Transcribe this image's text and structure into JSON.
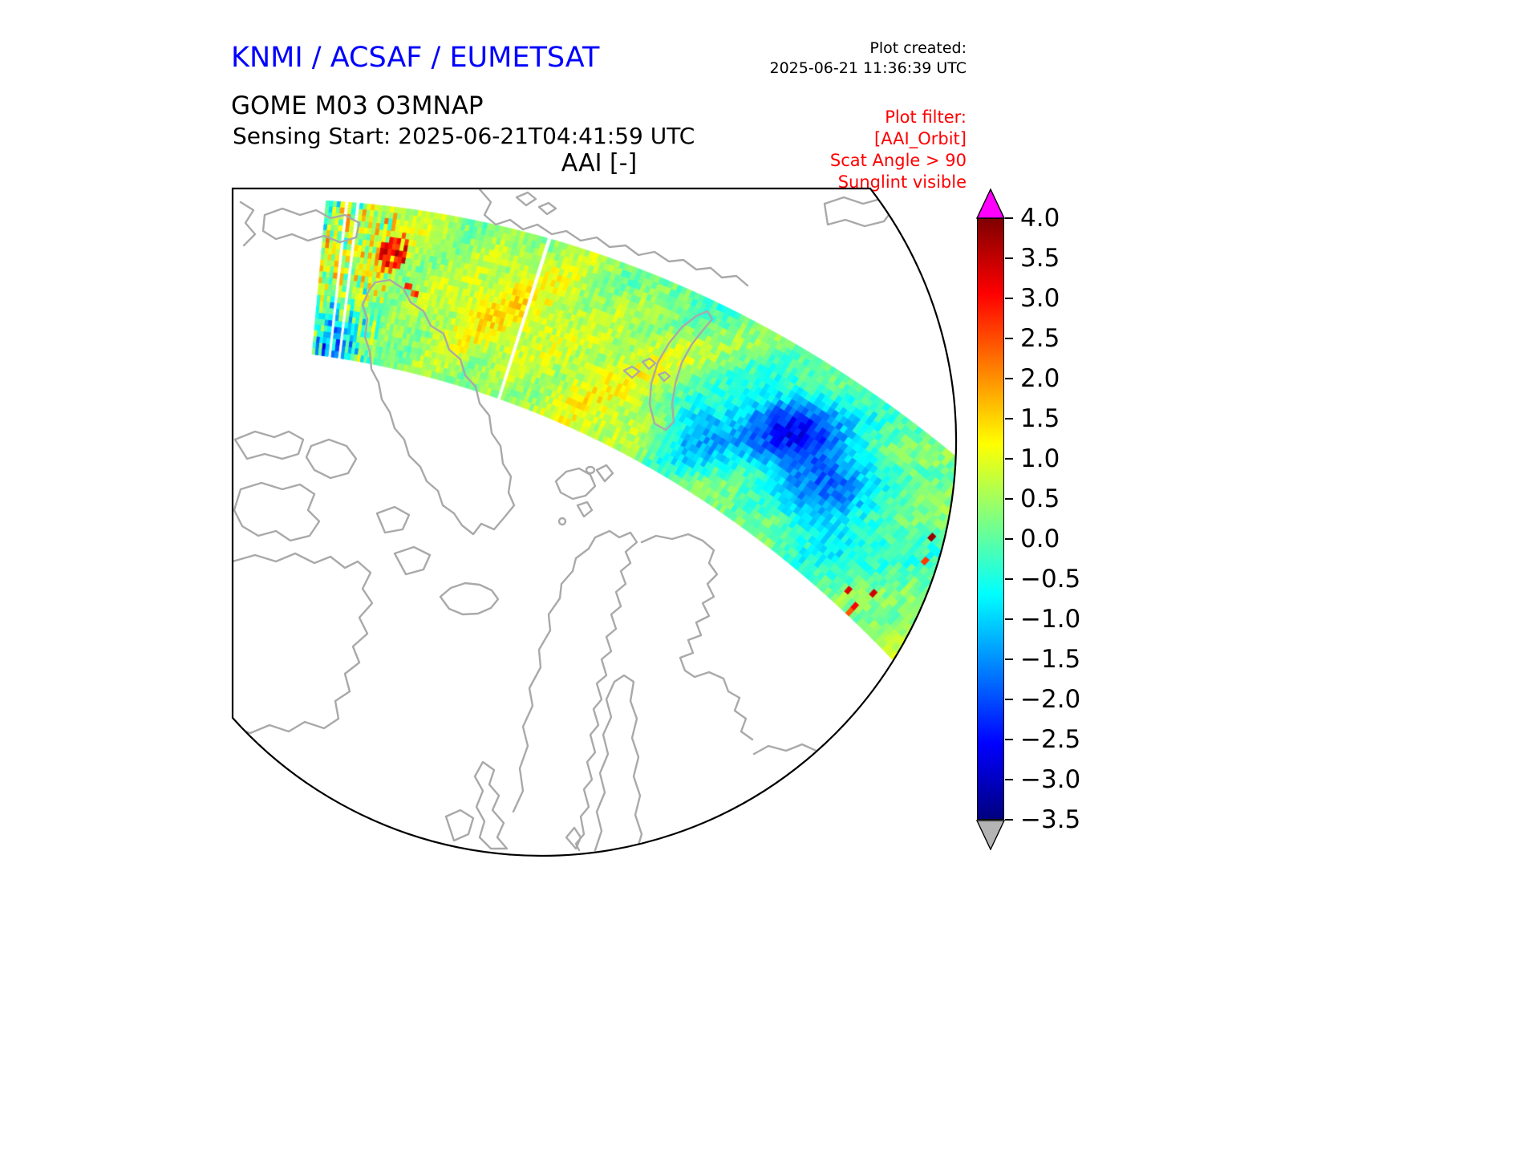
{
  "header": {
    "agency_title": "KNMI / ACSAF / EUMETSAT",
    "plot_created_label": "Plot created:",
    "plot_created_time": "2025-06-21 11:36:39 UTC",
    "product_title": "GOME M03 O3MNAP",
    "sensing_start": "Sensing Start: 2025-06-21T04:41:59 UTC",
    "plot_filter_label": "Plot filter:",
    "plot_filter_lines": [
      "[AAI_Orbit]",
      "Scat Angle > 90",
      "Sunglint visible"
    ]
  },
  "colors": {
    "agency_title": "#0000ff",
    "filter_text": "#ff0000",
    "coastline": "#a9a9a9",
    "map_frame": "#000000",
    "colorbar_over": "#ff00ff",
    "colorbar_under": "#b4b4b4"
  },
  "chart_data": {
    "type": "heatmap",
    "title": "AAI [-]",
    "projection": "north polar orthographic, clipped to rectangular axes",
    "grid": false,
    "legend_position": "vertical colorbar on right",
    "colorbar": {
      "vmin": -3.5,
      "vmax": 4.0,
      "tick_step": 0.5,
      "ticks": [
        4.0,
        3.5,
        3.0,
        2.5,
        2.0,
        1.5,
        1.0,
        0.5,
        0.0,
        -0.5,
        -1.0,
        -1.5,
        -2.0,
        -2.5,
        -3.0,
        -3.5
      ],
      "colormap": "jet",
      "gradient_stops": [
        {
          "pos": 0.0,
          "color": "#00007f"
        },
        {
          "pos": 0.125,
          "color": "#0000ff"
        },
        {
          "pos": 0.25,
          "color": "#0080ff"
        },
        {
          "pos": 0.375,
          "color": "#00ffff"
        },
        {
          "pos": 0.5,
          "color": "#80ff80"
        },
        {
          "pos": 0.625,
          "color": "#ffff00"
        },
        {
          "pos": 0.75,
          "color": "#ff8000"
        },
        {
          "pos": 0.875,
          "color": "#ff0000"
        },
        {
          "pos": 1.0,
          "color": "#7f0000"
        }
      ]
    },
    "swath": {
      "description": "Single satellite orbit swath of Absorbing Aerosol Index crossing the polar view from upper left to lower right over Greenland, Scandinavia and the Barents/Kara seas",
      "background_value_range": [
        -1.0,
        1.0
      ],
      "features": [
        {
          "feature": "noisy blue/green along-track striping at western end of swath",
          "approx_values": [
            -2.5,
            1.0
          ]
        },
        {
          "feature": "red aerosol hotspot cluster",
          "approx_values": [
            2.5,
            3.5
          ],
          "location": "upper-left part of swath"
        },
        {
          "feature": "deep blue negative-AAI patches",
          "approx_values": [
            -2.5,
            -1.5
          ],
          "location": "centre-right of swath"
        },
        {
          "feature": "scattered red specks",
          "approx_values": [
            2.0,
            3.0
          ],
          "location": "near eastern end of swath"
        },
        {
          "feature": "white missing scan lines",
          "location": "two slanted gaps near western end, one gap near centre of swath"
        }
      ]
    }
  }
}
